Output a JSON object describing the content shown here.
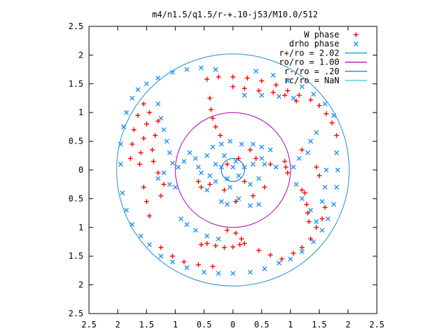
{
  "chart_data": {
    "type": "scatter",
    "title": "m4/n1.5/q1.5/r-+.10-j53/M10.0/512",
    "xlim": [
      -2.5,
      2.5
    ],
    "ylim": [
      -2.5,
      2.5
    ],
    "x_tick_labels": [
      "2.5",
      "2",
      "1.5",
      "1",
      "0.5",
      "0",
      "0.5",
      "1",
      "1.5",
      "2",
      "2.5"
    ],
    "y_tick_labels": [
      "2.5",
      "2",
      "1.5",
      "1",
      "0.5",
      "0",
      "0.5",
      "1",
      "1.5",
      "2",
      "2.5"
    ],
    "grid": false,
    "legend_position": "top-right",
    "legend": [
      {
        "label": "W phase",
        "kind": "points",
        "marker": "+",
        "color": "#ff0000"
      },
      {
        "label": "drho phase",
        "kind": "points",
        "marker": "x",
        "color": "#1e90ff"
      },
      {
        "label": "r+/ro = 2.02",
        "kind": "line",
        "color": "#1e8fcf"
      },
      {
        "label": "ro/ro = 1.00",
        "kind": "line",
        "color": "#b000b0"
      },
      {
        "label": "r-/ro = .20",
        "kind": "line",
        "color": "#1060c0"
      },
      {
        "label": "rc/ro = NaN",
        "kind": "line",
        "color": "#40c0e0"
      }
    ],
    "circles": [
      {
        "name": "r+/ro = 2.02",
        "radius": 2.02,
        "color": "#1e8fcf"
      },
      {
        "name": "ro/ro = 1.00",
        "radius": 1.0,
        "color": "#b000b0"
      },
      {
        "name": "r-/ro = .20",
        "radius": 0.2,
        "color": "#1060c0"
      }
    ],
    "series": [
      {
        "name": "W phase",
        "color": "#ff0000",
        "points": [
          [
            -0.45,
            1.58
          ],
          [
            -0.25,
            1.62
          ],
          [
            0.0,
            1.62
          ],
          [
            0.25,
            1.6
          ],
          [
            0.5,
            1.55
          ],
          [
            0.75,
            1.48
          ],
          [
            0.95,
            1.38
          ],
          [
            1.15,
            1.3
          ],
          [
            1.35,
            1.22
          ],
          [
            1.5,
            1.12
          ],
          [
            1.62,
            0.98
          ],
          [
            1.72,
            0.82
          ],
          [
            1.8,
            0.6
          ],
          [
            0.0,
            1.45
          ],
          [
            0.2,
            1.42
          ],
          [
            0.45,
            1.38
          ],
          [
            0.7,
            1.35
          ],
          [
            0.9,
            1.3
          ],
          [
            1.1,
            1.2
          ],
          [
            -0.4,
            1.25
          ],
          [
            -0.38,
            1.05
          ],
          [
            -0.35,
            0.9
          ],
          [
            -0.3,
            0.75
          ],
          [
            -0.22,
            0.6
          ],
          [
            -1.55,
            1.15
          ],
          [
            -1.65,
            0.95
          ],
          [
            -1.72,
            0.7
          ],
          [
            -1.75,
            0.45
          ],
          [
            -1.78,
            0.2
          ],
          [
            -1.45,
            1.0
          ],
          [
            -1.5,
            0.8
          ],
          [
            -1.55,
            0.55
          ],
          [
            -1.6,
            0.3
          ],
          [
            -1.62,
            0.1
          ],
          [
            -1.55,
            -0.3
          ],
          [
            -1.5,
            -0.55
          ],
          [
            -1.45,
            -0.8
          ],
          [
            -1.3,
            0.85
          ],
          [
            -1.35,
            0.6
          ],
          [
            -1.4,
            0.35
          ],
          [
            -1.38,
            0.15
          ],
          [
            -1.3,
            -0.05
          ],
          [
            -1.2,
            -0.25
          ],
          [
            -1.25,
            -0.45
          ],
          [
            -1.25,
            -1.35
          ],
          [
            -1.05,
            -1.5
          ],
          [
            -0.85,
            -1.6
          ],
          [
            -0.6,
            -1.65
          ],
          [
            -0.35,
            -1.68
          ],
          [
            -0.55,
            -1.3
          ],
          [
            -0.45,
            -1.28
          ],
          [
            -0.3,
            -1.32
          ],
          [
            -0.15,
            -1.35
          ],
          [
            0.0,
            -1.34
          ],
          [
            0.12,
            -1.3
          ],
          [
            -0.1,
            -1.05
          ],
          [
            0.05,
            -1.1
          ],
          [
            0.15,
            -1.2
          ],
          [
            0.2,
            -1.28
          ],
          [
            0.45,
            -1.4
          ],
          [
            0.65,
            -1.48
          ],
          [
            0.85,
            -1.55
          ],
          [
            1.05,
            -1.45
          ],
          [
            1.2,
            -1.35
          ],
          [
            1.35,
            -1.2
          ],
          [
            1.45,
            -1.0
          ],
          [
            1.55,
            -0.85
          ],
          [
            1.6,
            -0.65
          ],
          [
            1.25,
            -0.4
          ],
          [
            1.28,
            -0.6
          ],
          [
            1.3,
            -0.75
          ],
          [
            1.32,
            -0.9
          ],
          [
            1.2,
            -0.35
          ],
          [
            0.95,
            -0.05
          ],
          [
            0.92,
            0.05
          ],
          [
            0.9,
            0.15
          ],
          [
            1.2,
            0.35
          ],
          [
            1.45,
            0.05
          ],
          [
            1.5,
            -0.1
          ],
          [
            -0.6,
            -0.2
          ],
          [
            -0.55,
            -0.3
          ],
          [
            -0.4,
            -0.25
          ],
          [
            -0.1,
            0.1
          ],
          [
            0.1,
            0.2
          ],
          [
            0.3,
            0.35
          ],
          [
            0.4,
            0.2
          ],
          [
            0.2,
            -0.2
          ],
          [
            -0.15,
            -0.35
          ],
          [
            0.05,
            -0.55
          ],
          [
            0.35,
            -0.45
          ],
          [
            0.55,
            -0.3
          ],
          [
            0.65,
            0.1
          ]
        ]
      },
      {
        "name": "drho phase",
        "color": "#1e90ff",
        "points": [
          [
            -1.95,
            0.1
          ],
          [
            -1.92,
            -0.4
          ],
          [
            -1.85,
            -0.7
          ],
          [
            -1.75,
            -0.95
          ],
          [
            -1.6,
            -1.15
          ],
          [
            -1.45,
            -1.3
          ],
          [
            -1.25,
            -1.5
          ],
          [
            -1.05,
            -1.6
          ],
          [
            -0.8,
            -1.7
          ],
          [
            -0.5,
            -1.78
          ],
          [
            -0.25,
            -1.8
          ],
          [
            0.0,
            -1.8
          ],
          [
            0.3,
            -1.78
          ],
          [
            0.55,
            -1.72
          ],
          [
            0.8,
            -1.62
          ],
          [
            1.0,
            -1.55
          ],
          [
            1.2,
            -1.42
          ],
          [
            1.4,
            -1.25
          ],
          [
            1.55,
            -1.05
          ],
          [
            1.65,
            -0.85
          ],
          [
            1.75,
            -0.6
          ],
          [
            1.8,
            -0.3
          ],
          [
            1.82,
            0.0
          ],
          [
            1.8,
            0.3
          ],
          [
            -1.5,
            1.5
          ],
          [
            -1.3,
            1.6
          ],
          [
            -1.05,
            1.7
          ],
          [
            -0.8,
            1.75
          ],
          [
            -0.55,
            1.78
          ],
          [
            -0.3,
            1.75
          ],
          [
            -1.75,
            1.25
          ],
          [
            -1.65,
            1.4
          ],
          [
            -1.85,
            1.0
          ],
          [
            -1.9,
            0.75
          ],
          [
            -1.95,
            0.45
          ],
          [
            0.4,
            1.72
          ],
          [
            0.7,
            1.65
          ],
          [
            0.95,
            1.55
          ],
          [
            1.2,
            1.45
          ],
          [
            1.4,
            1.32
          ],
          [
            1.6,
            1.15
          ],
          [
            1.75,
            0.95
          ],
          [
            0.2,
            1.3
          ],
          [
            0.5,
            1.3
          ],
          [
            0.8,
            1.28
          ],
          [
            1.05,
            1.25
          ],
          [
            -1.3,
            1.15
          ],
          [
            -1.25,
            0.9
          ],
          [
            -1.2,
            0.7
          ],
          [
            -1.15,
            0.5
          ],
          [
            -1.1,
            0.3
          ],
          [
            -1.05,
            0.12
          ],
          [
            -1.2,
            -0.05
          ],
          [
            -1.3,
            -0.15
          ],
          [
            -1.1,
            -0.25
          ],
          [
            -1.0,
            -0.3
          ],
          [
            -0.95,
            0.05
          ],
          [
            -0.85,
            0.15
          ],
          [
            -0.75,
            0.3
          ],
          [
            -0.65,
            0.2
          ],
          [
            -0.6,
            0.05
          ],
          [
            -0.55,
            -0.05
          ],
          [
            -0.45,
            0.25
          ],
          [
            -0.35,
            0.4
          ],
          [
            -0.9,
            -0.85
          ],
          [
            -0.8,
            -0.95
          ],
          [
            -0.65,
            -1.05
          ],
          [
            -0.45,
            -1.15
          ],
          [
            -0.25,
            -1.2
          ],
          [
            -0.2,
            -0.55
          ],
          [
            -0.1,
            -0.6
          ],
          [
            0.1,
            -0.5
          ],
          [
            0.3,
            -0.62
          ],
          [
            0.45,
            -0.6
          ],
          [
            -0.2,
            0.45
          ],
          [
            -0.05,
            0.5
          ],
          [
            0.15,
            0.45
          ],
          [
            0.35,
            0.45
          ],
          [
            0.5,
            0.4
          ],
          [
            0.65,
            0.35
          ],
          [
            0.55,
            0.1
          ],
          [
            0.75,
            0.05
          ],
          [
            1.05,
            0.05
          ],
          [
            1.15,
            0.2
          ],
          [
            1.3,
            0.3
          ],
          [
            1.35,
            0.5
          ],
          [
            1.45,
            0.65
          ],
          [
            1.1,
            -0.25
          ],
          [
            1.2,
            -0.5
          ],
          [
            1.35,
            -0.7
          ],
          [
            1.45,
            -0.9
          ],
          [
            1.55,
            -0.55
          ],
          [
            1.6,
            -0.3
          ],
          [
            1.62,
            0.0
          ],
          [
            -0.4,
            -0.1
          ],
          [
            -0.3,
            -0.2
          ],
          [
            -0.1,
            -0.15
          ],
          [
            0.1,
            -0.1
          ],
          [
            0.2,
            0.05
          ],
          [
            0.05,
            0.15
          ],
          [
            -0.15,
            0.25
          ],
          [
            -0.3,
            0.1
          ],
          [
            -0.2,
            0.05
          ],
          [
            0.0,
            0.05
          ],
          [
            0.3,
            -0.25
          ],
          [
            0.45,
            -0.15
          ],
          [
            0.5,
            0.2
          ],
          [
            0.35,
            0.1
          ],
          [
            -0.05,
            -0.3
          ],
          [
            -0.45,
            -0.35
          ]
        ]
      }
    ]
  }
}
